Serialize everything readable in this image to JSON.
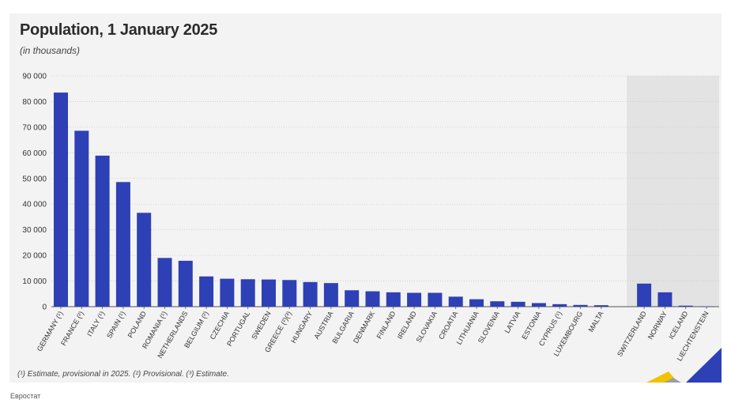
{
  "title": "Population, 1 January 2025",
  "subtitle": "(in thousands)",
  "footnote": "(¹) Estimate, provisional in 2025. (²) Provisional. (³) Estimate.",
  "source": "Евростат",
  "colors": {
    "bar": "#2e40b5",
    "panel": "#f3f3f3",
    "highlight_band": "#e3e3e3",
    "corner_blue": "#2e40b5",
    "corner_yellow": "#f2c200"
  },
  "chart_data": {
    "type": "bar",
    "title": "Population, 1 January 2025",
    "subtitle": "(in thousands)",
    "ylim": [
      0,
      90000
    ],
    "yticks": [
      "0",
      "10 000",
      "20 000",
      "30 000",
      "40 000",
      "50 000",
      "60 000",
      "70 000",
      "80 000",
      "90 000"
    ],
    "grid": true,
    "categories": [
      "GERMANY (¹)",
      "FRANCE (²)",
      "ITALY (¹)",
      "SPAIN (¹)",
      "POLAND",
      "ROMANIA (¹)",
      "NETHERLANDS",
      "BELGIUM (²)",
      "CZECHIA",
      "PORTUGAL",
      "SWEDEN",
      "GREECE (²)(³)",
      "HUNGARY",
      "AUSTRIA",
      "BULGARIA",
      "DENMARK",
      "FINLAND",
      "IRELAND",
      "SLOVAKIA",
      "CROATIA",
      "LITHUANIA",
      "SLOVENIA",
      "LATVIA",
      "ESTONIA",
      "CYPRUS (¹)",
      "LUXEMBOURG",
      "MALTA",
      "SWITZERLAND",
      "NORWAY",
      "ICELAND",
      "LIECHTENSTEIN"
    ],
    "values": [
      83500,
      68600,
      58900,
      48600,
      36600,
      19000,
      17900,
      11800,
      10900,
      10700,
      10600,
      10400,
      9600,
      9200,
      6400,
      6000,
      5600,
      5400,
      5400,
      3900,
      2900,
      2100,
      1900,
      1400,
      980,
      680,
      570,
      9000,
      5600,
      390,
      40
    ],
    "group_break_after": 26
  }
}
